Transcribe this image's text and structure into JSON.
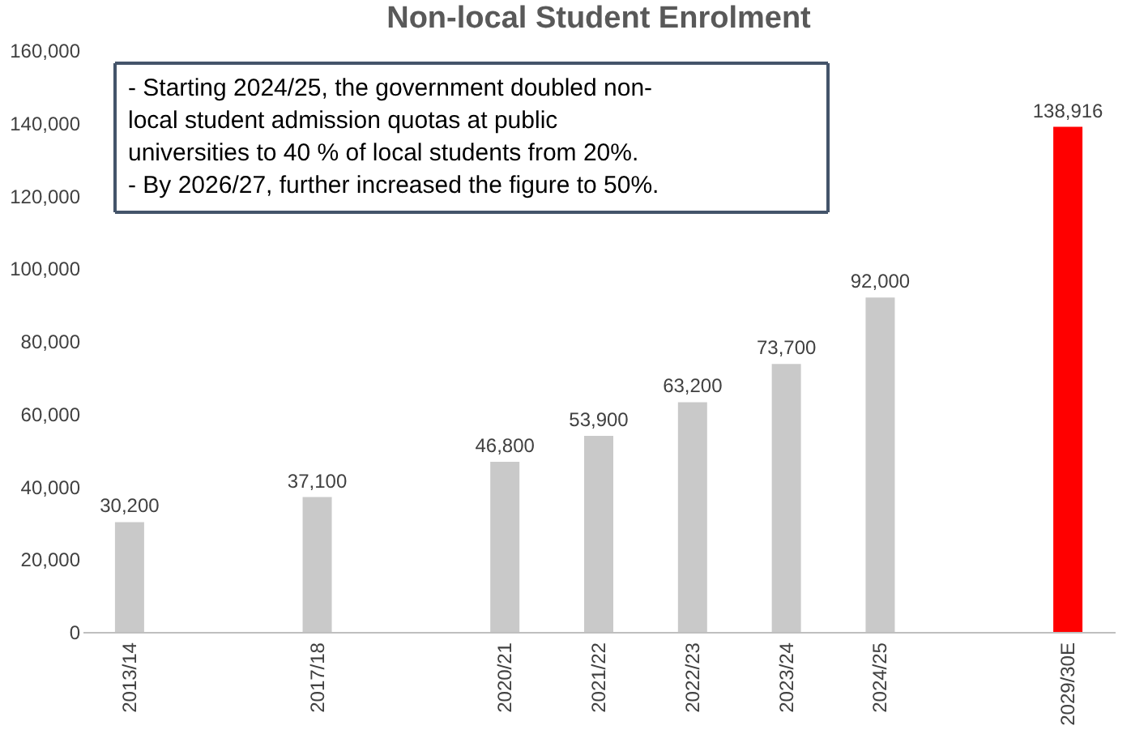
{
  "chart_data": {
    "type": "bar",
    "title": "Non-local Student Enrolment",
    "categories": [
      "2013/14",
      null,
      "2017/18",
      null,
      "2020/21",
      "2021/22",
      "2022/23",
      "2023/24",
      "2024/25",
      null,
      "2029/30E"
    ],
    "values": [
      30200,
      null,
      37100,
      null,
      46800,
      53900,
      63200,
      73700,
      92000,
      null,
      138916
    ],
    "colors": [
      "#c9c9c9",
      null,
      "#c9c9c9",
      null,
      "#c9c9c9",
      "#c9c9c9",
      "#c9c9c9",
      "#c9c9c9",
      "#c9c9c9",
      null,
      "#ff0000"
    ],
    "ylim": [
      0,
      160000
    ],
    "yticks": [
      0,
      {
        "value": 20000,
        "label": "20,000"
      },
      {
        "value": 40000,
        "label": "40,000"
      },
      {
        "value": 60000,
        "label": "60,000"
      },
      {
        "value": 80000,
        "label": "80,000"
      },
      {
        "value": 100000,
        "label": "100,000"
      },
      {
        "value": 120000,
        "label": "120,000"
      },
      {
        "value": 140000,
        "label": "140,000"
      },
      {
        "value": 160000,
        "label": "160,000"
      }
    ],
    "value_labels": [
      "30,200",
      null,
      "37,100",
      null,
      "46,800",
      "53,900",
      "63,200",
      "73,700",
      "92,000",
      null,
      "138,916"
    ],
    "grid": false,
    "annotations": [
      "- Starting 2024/25, the government doubled non-\nlocal student admission quotas at public\nuniversities to 40 % of local students from 20%.\n- By 2026/27, further increased the figure to 50%."
    ]
  }
}
